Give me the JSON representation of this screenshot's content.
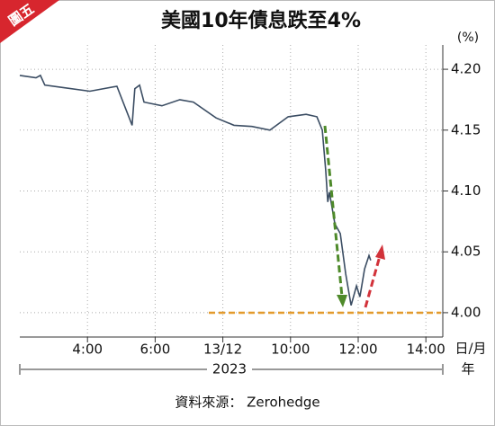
{
  "badge": "圖五",
  "chart_data": {
    "type": "line",
    "title": "美國10年債息跌至4%",
    "y_unit": "(%)",
    "x_unit": "日/月",
    "year_unit": "年",
    "year": "2023",
    "source": "資料來源： Zerohedge",
    "xlim": [
      2,
      14.5
    ],
    "ylim": [
      3.98,
      4.22
    ],
    "xticks": [
      {
        "value": 4,
        "label": "4:00"
      },
      {
        "value": 6,
        "label": "6:00"
      },
      {
        "value": 8,
        "label": "13/12"
      },
      {
        "value": 10,
        "label": "10:00"
      },
      {
        "value": 12,
        "label": "12:00"
      },
      {
        "value": 14,
        "label": "14:00"
      }
    ],
    "yticks": [
      {
        "value": 4,
        "label": "4.00"
      },
      4.05,
      {
        "value": 4.1,
        "label": "4.10"
      },
      4.15,
      {
        "value": 4.2,
        "label": "4.20"
      }
    ],
    "grid": true,
    "series": [
      {
        "color": "#3b4d63",
        "x": [
          2.0,
          2.48,
          2.61,
          2.74,
          3.28,
          4.07,
          4.87,
          5.32,
          5.4,
          5.54,
          5.67,
          6.2,
          6.73,
          7.13,
          7.8,
          8.33,
          8.86,
          9.39,
          9.93,
          10.46,
          10.78,
          10.94,
          11.04,
          11.1,
          11.15,
          11.31,
          11.47,
          11.63,
          11.79,
          11.95,
          12.05,
          12.19,
          12.32,
          12.37
        ],
        "values": [
          4.195,
          4.193,
          4.195,
          4.187,
          4.185,
          4.182,
          4.186,
          4.154,
          4.184,
          4.187,
          4.173,
          4.17,
          4.175,
          4.173,
          4.16,
          4.154,
          4.153,
          4.15,
          4.161,
          4.163,
          4.161,
          4.15,
          4.117,
          4.091,
          4.099,
          4.073,
          4.065,
          4.032,
          4.006,
          4.022,
          4.013,
          4.036,
          4.047,
          4.043
        ]
      }
    ]
  }
}
